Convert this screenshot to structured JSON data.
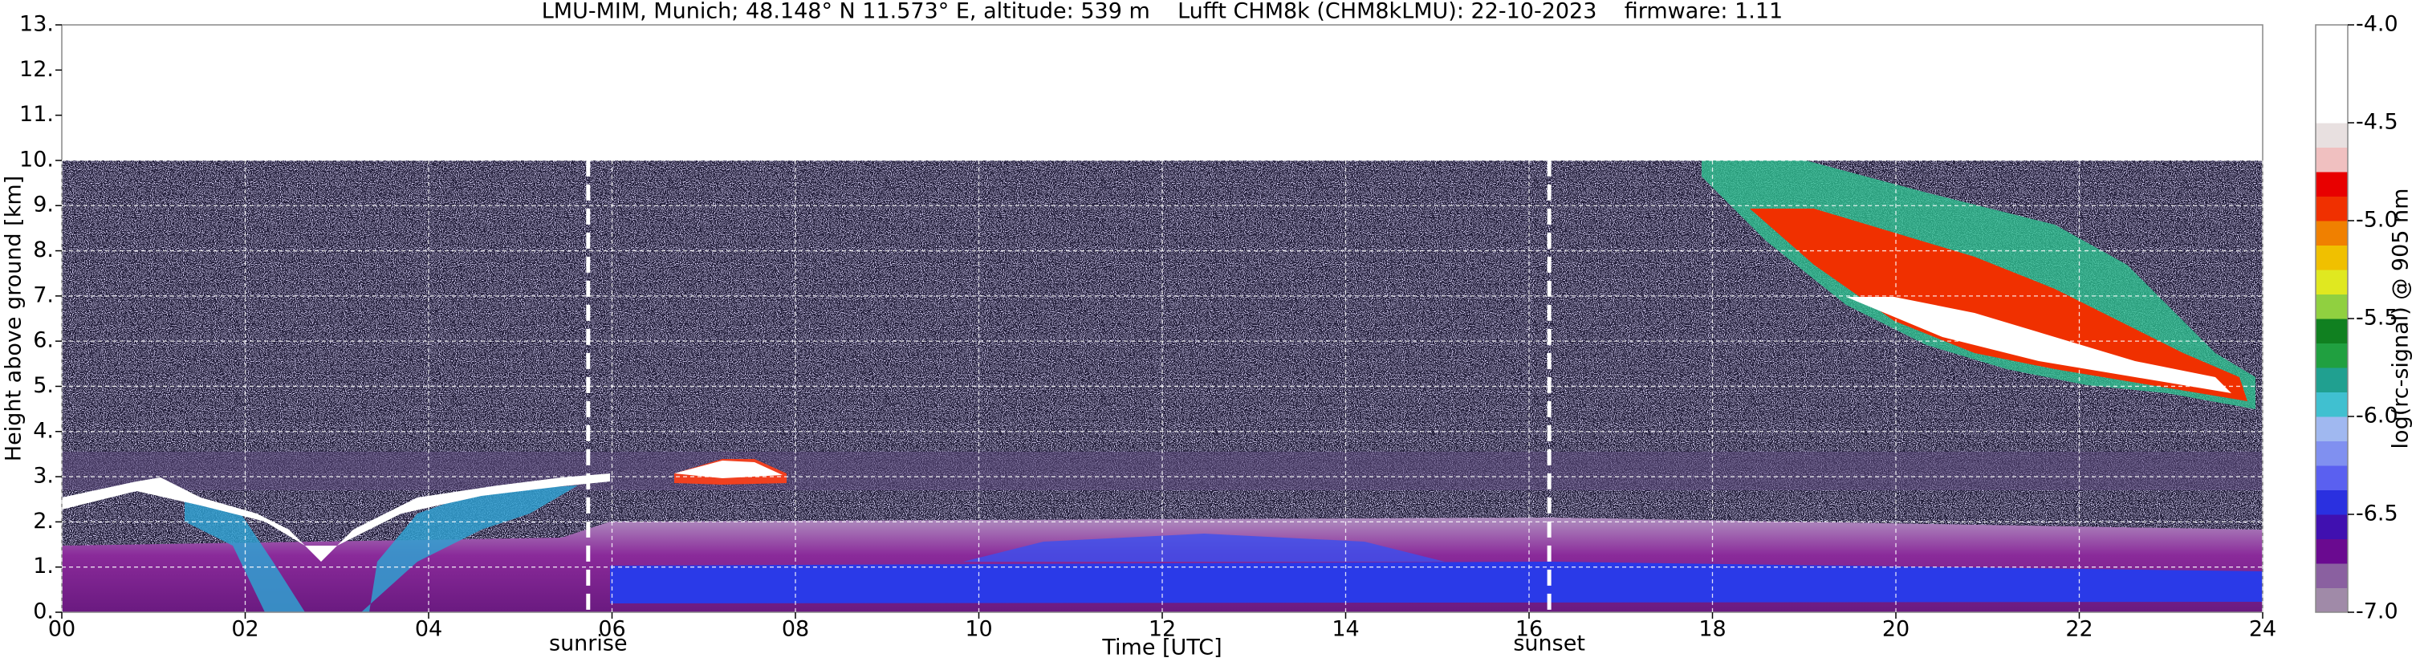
{
  "chart_data": {
    "type": "heatmap",
    "title": "LMU-MIM, Munich; 48.148° N 11.573° E, altitude: 539 m    Lufft CHM8k (CHM8kLMU): 22-10-2023    firmware: 1.11",
    "x_label": "Time [UTC]",
    "y_label": "Height above ground [km]",
    "colorbar_label": "log(rc-signal) @ 905 nm",
    "xlim": [
      0,
      24
    ],
    "xticks": [
      {
        "value": 0,
        "label": "00"
      },
      {
        "value": 2,
        "label": "02"
      },
      {
        "value": 4,
        "label": "04"
      },
      {
        "value": 6,
        "label": "06"
      },
      {
        "value": 8,
        "label": "08"
      },
      10,
      12,
      14,
      16,
      18,
      20,
      22,
      24
    ],
    "ylim": [
      0,
      13
    ],
    "yticks": [
      {
        "value": 0,
        "label": "0."
      },
      {
        "value": 1,
        "label": "1."
      },
      {
        "value": 2,
        "label": "2."
      },
      {
        "value": 3,
        "label": "3."
      },
      {
        "value": 4,
        "label": "4."
      },
      {
        "value": 5,
        "label": "5."
      },
      {
        "value": 6,
        "label": "6."
      },
      {
        "value": 7,
        "label": "7."
      },
      {
        "value": 8,
        "label": "8."
      },
      {
        "value": 9,
        "label": "9."
      },
      {
        "value": 10,
        "label": "10."
      },
      {
        "value": 11,
        "label": "11."
      },
      {
        "value": 12,
        "label": "12."
      },
      {
        "value": 13,
        "label": "13."
      }
    ],
    "clim": [
      -7,
      -4
    ],
    "cticks": [
      {
        "value": -7,
        "label": "-7.0"
      },
      -6.5,
      {
        "value": -6,
        "label": "-6.0"
      },
      -5.5,
      {
        "value": -5,
        "label": "-5.0"
      },
      -4.5,
      {
        "value": -4,
        "label": "-4.0"
      }
    ],
    "colormap": [
      "#a08aa8",
      "#8a60a0",
      "#6a0a90",
      "#4010b0",
      "#2a30e0",
      "#5a60f0",
      "#8090f0",
      "#a0b8f0",
      "#40c0d0",
      "#20a090",
      "#20a040",
      "#108020",
      "#90d040",
      "#e0e820",
      "#f0c000",
      "#f08000",
      "#f03000",
      "#e80000",
      "#f0c0c0",
      "#e8e0e0",
      "#ffffff",
      "#ffffff",
      "#ffffff",
      "#ffffff"
    ],
    "grid": true,
    "annotations": [
      {
        "text": "sunrise",
        "x": 5.74
      },
      {
        "text": "sunset",
        "x": 16.22
      }
    ]
  }
}
